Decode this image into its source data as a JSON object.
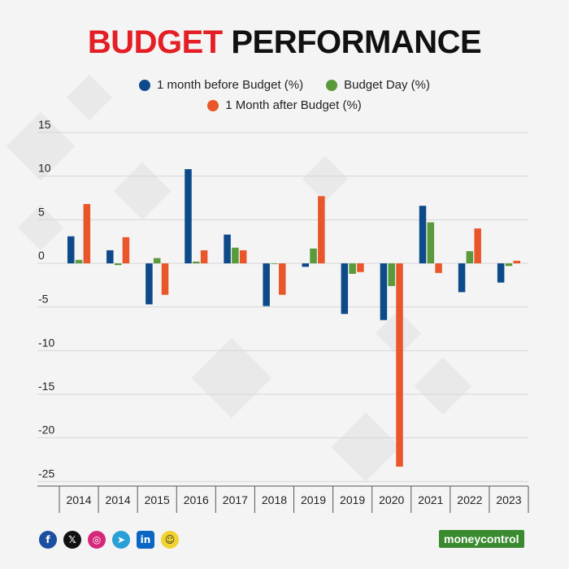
{
  "title_part1": "BUDGET",
  "title_part2": "PERFORMANCE",
  "brand": "moneycontrol",
  "social_icons": [
    "facebook-icon",
    "x-icon",
    "instagram-icon",
    "telegram-icon",
    "linkedin-icon",
    "snapchat-icon"
  ],
  "colors": {
    "series1": "#0d4a8a",
    "series2": "#5a9a3a",
    "series3": "#e8562a",
    "title_red": "#e31e24"
  },
  "chart_data": {
    "type": "bar",
    "title": "BUDGET PERFORMANCE",
    "categories": [
      "2014",
      "2014",
      "2015",
      "2016",
      "2017",
      "2018",
      "2019",
      "2019",
      "2020",
      "2021",
      "2022",
      "2023"
    ],
    "series": [
      {
        "name": "1 month before Budget (%)",
        "values": [
          3.1,
          1.5,
          -4.7,
          10.8,
          3.3,
          -4.9,
          -0.4,
          -5.8,
          -6.5,
          6.6,
          -3.3,
          -2.2
        ]
      },
      {
        "name": "Budget Day (%)",
        "values": [
          0.4,
          -0.2,
          0.6,
          0.2,
          1.8,
          0.0,
          1.7,
          -1.2,
          -2.6,
          4.7,
          1.4,
          -0.3
        ]
      },
      {
        "name": "1 Month after Budget (%)",
        "values": [
          6.8,
          3.0,
          -3.6,
          1.5,
          1.5,
          -3.6,
          7.7,
          -1.0,
          -23.3,
          -1.1,
          4.0,
          0.3
        ]
      }
    ],
    "ylim": [
      -25,
      15
    ],
    "yticks": [
      15,
      10,
      5,
      0,
      -5,
      -10,
      -15,
      -20,
      -25
    ],
    "grid": true,
    "legend_position": "top-center"
  }
}
